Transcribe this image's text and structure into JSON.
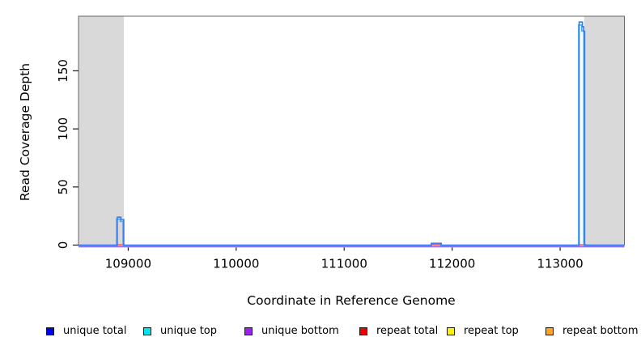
{
  "chart_data": {
    "type": "area",
    "title": "",
    "xlabel": "Coordinate in Reference Genome",
    "ylabel": "Read Coverage Depth",
    "xlim": [
      108540,
      113595
    ],
    "ylim": [
      0,
      197
    ],
    "grid": false,
    "legend_position": "bottom",
    "x_ticks": [
      {
        "value": 109000,
        "label": "109000"
      },
      {
        "value": 110000,
        "label": "110000"
      },
      {
        "value": 111000,
        "label": "111000"
      },
      {
        "value": 112000,
        "label": "112000"
      },
      {
        "value": 113000,
        "label": "113000"
      }
    ],
    "y_ticks": [
      {
        "value": 0,
        "label": "0"
      },
      {
        "value": 50,
        "label": "50"
      },
      {
        "value": 100,
        "label": "100"
      },
      {
        "value": 150,
        "label": "150"
      }
    ],
    "shaded_regions": [
      {
        "x0": 108540,
        "x1": 108960,
        "color": "#d9d9d9"
      },
      {
        "x0": 113222,
        "x1": 113595,
        "color": "#d9d9d9"
      }
    ],
    "frame_color": "#666666",
    "tick_color": "#1a1a1a",
    "series": [
      {
        "name": "repeat bottom",
        "color": "#ffa500",
        "draw_color": "#ffa500",
        "points": [
          [
            108540,
            0
          ],
          [
            113595,
            0
          ]
        ]
      },
      {
        "name": "repeat top",
        "color": "#ffff00",
        "draw_color": "#ffff00",
        "points": [
          [
            108540,
            0
          ],
          [
            113595,
            0
          ]
        ]
      },
      {
        "name": "repeat total",
        "color": "#ff0000",
        "draw_color": "#ff5a52",
        "points": [
          [
            108540,
            0
          ],
          [
            108899,
            0
          ],
          [
            108899,
            1
          ],
          [
            108959,
            1
          ],
          [
            108959,
            0
          ],
          [
            111809,
            0
          ],
          [
            111809,
            1
          ],
          [
            111899,
            1
          ],
          [
            111899,
            0
          ],
          [
            113176,
            0
          ],
          [
            113176,
            1
          ],
          [
            113240,
            1
          ],
          [
            113240,
            0
          ],
          [
            113595,
            0
          ]
        ]
      },
      {
        "name": "unique bottom",
        "color": "#a020f0",
        "draw_color": "#9a63ee",
        "points": [
          [
            108540,
            0
          ],
          [
            113595,
            0
          ]
        ]
      },
      {
        "name": "unique top",
        "color": "#00ffff",
        "draw_color": "#3fb0e8",
        "points": [
          [
            108540,
            0
          ],
          [
            108893,
            0
          ],
          [
            108893,
            23
          ],
          [
            108927,
            23
          ],
          [
            108927,
            21
          ],
          [
            108952,
            21
          ],
          [
            108952,
            0
          ],
          [
            111805,
            0
          ],
          [
            111805,
            1.5
          ],
          [
            111893,
            1.5
          ],
          [
            111893,
            0
          ],
          [
            113171,
            0
          ],
          [
            113171,
            190
          ],
          [
            113200,
            190
          ],
          [
            113200,
            185
          ],
          [
            113219,
            185
          ],
          [
            113219,
            0
          ],
          [
            113595,
            0
          ]
        ]
      },
      {
        "name": "unique total",
        "color": "#0000ff",
        "draw_color": "#3a78f2",
        "points": [
          [
            108540,
            0
          ],
          [
            108899,
            0
          ],
          [
            108899,
            24
          ],
          [
            108933,
            24
          ],
          [
            108933,
            22
          ],
          [
            108959,
            22
          ],
          [
            108959,
            0
          ],
          [
            111809,
            0
          ],
          [
            111809,
            1.5
          ],
          [
            111899,
            1.5
          ],
          [
            111899,
            0
          ],
          [
            113176,
            0
          ],
          [
            113176,
            192
          ],
          [
            113206,
            192
          ],
          [
            113206,
            188
          ],
          [
            113217,
            188
          ],
          [
            113217,
            184
          ],
          [
            113226,
            184
          ],
          [
            113226,
            0
          ],
          [
            113595,
            0
          ]
        ]
      }
    ],
    "legend": [
      {
        "label": "unique total",
        "color": "#0000ee"
      },
      {
        "label": "unique top",
        "color": "#00e5ee"
      },
      {
        "label": "unique bottom",
        "color": "#a020f0"
      },
      {
        "label": "repeat total",
        "color": "#ee0000"
      },
      {
        "label": "repeat top",
        "color": "#fff200"
      },
      {
        "label": "repeat bottom",
        "color": "#ffa520"
      }
    ]
  }
}
